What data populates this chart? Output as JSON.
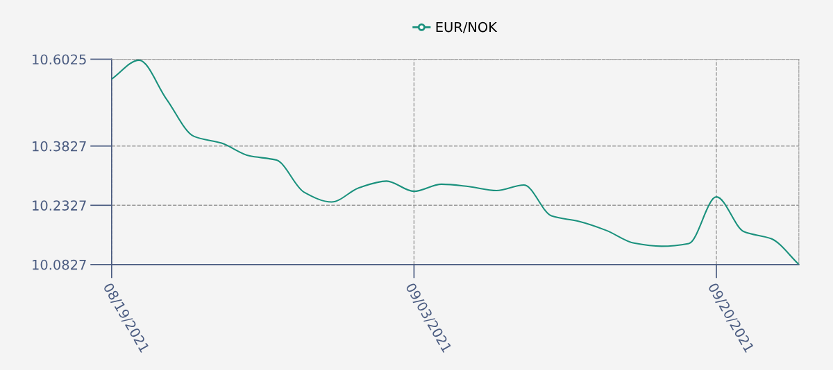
{
  "chart_data": {
    "type": "line",
    "categories": [
      "08/19/2021",
      null,
      null,
      null,
      null,
      null,
      null,
      null,
      null,
      null,
      null,
      "09/03/2021",
      null,
      null,
      null,
      null,
      null,
      null,
      null,
      null,
      null,
      null,
      "09/20/2021",
      null,
      null,
      null
    ],
    "series": [
      {
        "name": "EUR/NOK",
        "color": "#1a917d",
        "values": [
          10.552,
          10.6,
          10.501,
          10.407,
          10.39,
          10.358,
          10.347,
          10.266,
          10.241,
          10.277,
          10.294,
          10.268,
          10.286,
          10.28,
          10.27,
          10.284,
          10.206,
          10.192,
          10.169,
          10.137,
          10.129,
          10.136,
          10.254,
          10.166,
          10.148,
          10.083
        ]
      }
    ],
    "ylim": [
      10.0827,
      10.6025
    ],
    "yticks": [
      10.0827,
      10.2327,
      10.3827,
      10.6025
    ],
    "grid": true,
    "legend": "top",
    "marker": "none",
    "line_style": "solid"
  }
}
